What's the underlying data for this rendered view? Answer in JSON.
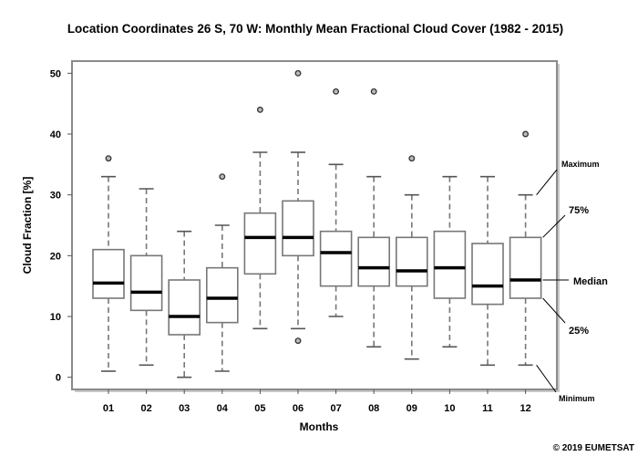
{
  "chart_data": {
    "type": "box",
    "title": "Location Coordinates 26 S, 70 W: Monthly Mean Fractional Cloud Cover (1982 - 2015)",
    "xlabel": "Months",
    "ylabel": "Cloud Fraction  [%]",
    "ylim": [
      -2,
      52
    ],
    "yticks": [
      0,
      10,
      20,
      30,
      40,
      50
    ],
    "grid": false,
    "categories": [
      "01",
      "02",
      "03",
      "04",
      "05",
      "06",
      "07",
      "08",
      "09",
      "10",
      "11",
      "12"
    ],
    "boxes": [
      {
        "min": 1,
        "q1": 13,
        "median": 15.5,
        "q3": 21,
        "max": 33,
        "outliers": [
          36
        ]
      },
      {
        "min": 2,
        "q1": 11,
        "median": 14,
        "q3": 20,
        "max": 31,
        "outliers": []
      },
      {
        "min": 0,
        "q1": 7,
        "median": 10,
        "q3": 16,
        "max": 24,
        "outliers": []
      },
      {
        "min": 1,
        "q1": 9,
        "median": 13,
        "q3": 18,
        "max": 25,
        "outliers": [
          33
        ]
      },
      {
        "min": 8,
        "q1": 17,
        "median": 23,
        "q3": 27,
        "max": 37,
        "outliers": [
          44
        ]
      },
      {
        "min": 8,
        "q1": 20,
        "median": 23,
        "q3": 29,
        "max": 37,
        "outliers": [
          50,
          6
        ]
      },
      {
        "min": 10,
        "q1": 15,
        "median": 20.5,
        "q3": 24,
        "max": 35,
        "outliers": [
          47
        ]
      },
      {
        "min": 5,
        "q1": 15,
        "median": 18,
        "q3": 23,
        "max": 33,
        "outliers": [
          47
        ]
      },
      {
        "min": 3,
        "q1": 15,
        "median": 17.5,
        "q3": 23,
        "max": 30,
        "outliers": [
          36
        ]
      },
      {
        "min": 5,
        "q1": 13,
        "median": 18,
        "q3": 24,
        "max": 33,
        "outliers": []
      },
      {
        "min": 2,
        "q1": 12,
        "median": 15,
        "q3": 22,
        "max": 33,
        "outliers": []
      },
      {
        "min": 2,
        "q1": 13,
        "median": 16,
        "q3": 23,
        "max": 30,
        "outliers": [
          40
        ]
      }
    ],
    "annotations": [
      "Maximum",
      "75%",
      "Median",
      "25%",
      "Minimum"
    ]
  },
  "copyright": "© 2019 EUMETSAT"
}
